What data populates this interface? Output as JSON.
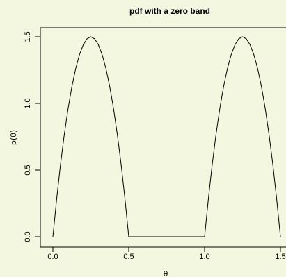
{
  "chart_data": {
    "type": "line",
    "title": "pdf with a zero band",
    "xlabel": "θ",
    "ylabel": "p(θ)",
    "xlim": [
      0,
      1.5
    ],
    "ylim": [
      0,
      1.5
    ],
    "xticks": [
      0.0,
      0.5,
      1.0,
      1.5
    ],
    "xtick_labels": [
      "0.0",
      "0.5",
      "1.0",
      "1.5"
    ],
    "yticks": [
      0.0,
      0.5,
      1.0,
      1.5
    ],
    "ytick_labels": [
      "0.0",
      "0.5",
      "1.0",
      "1.5"
    ],
    "grid": false,
    "series": [
      {
        "x": [
          0.0,
          0.025,
          0.05,
          0.075,
          0.1,
          0.125,
          0.15,
          0.175,
          0.2,
          0.225,
          0.25,
          0.275,
          0.3,
          0.325,
          0.35,
          0.375,
          0.4,
          0.425,
          0.45,
          0.475,
          0.5,
          0.6,
          0.7,
          0.8,
          0.9,
          1.0,
          1.025,
          1.05,
          1.075,
          1.1,
          1.125,
          1.15,
          1.175,
          1.2,
          1.225,
          1.25,
          1.275,
          1.3,
          1.325,
          1.35,
          1.375,
          1.4,
          1.425,
          1.45,
          1.475,
          1.5
        ],
        "values": [
          0.0,
          0.285,
          0.54,
          0.765,
          0.96,
          1.125,
          1.26,
          1.365,
          1.44,
          1.485,
          1.5,
          1.485,
          1.44,
          1.365,
          1.26,
          1.125,
          0.96,
          0.765,
          0.54,
          0.285,
          0.0,
          0.0,
          0.0,
          0.0,
          0.0,
          0.0,
          0.285,
          0.54,
          0.765,
          0.96,
          1.125,
          1.26,
          1.365,
          1.44,
          1.485,
          1.5,
          1.485,
          1.44,
          1.365,
          1.26,
          1.125,
          0.96,
          0.765,
          0.54,
          0.285,
          0.0
        ]
      }
    ]
  }
}
